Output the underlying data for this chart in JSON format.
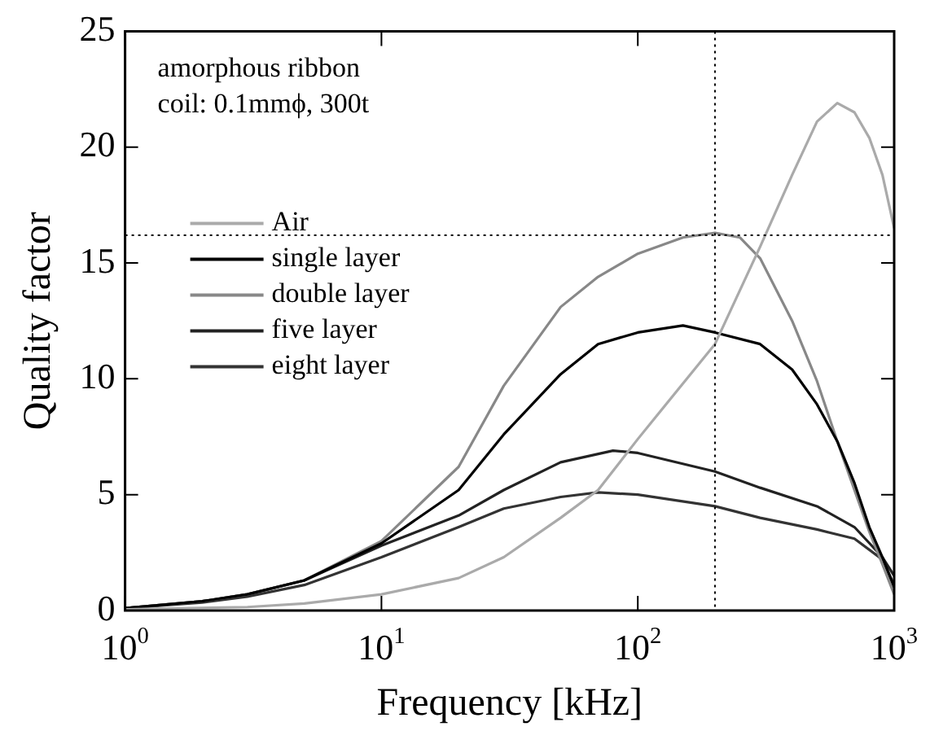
{
  "chart_data": {
    "type": "line",
    "xlabel": "Frequency [kHz]",
    "ylabel": "Quality factor",
    "annotations": [
      "amorphous ribbon",
      "coil: 0.1mmϕ, 300t"
    ],
    "log": "x",
    "xlim": [
      1,
      1000
    ],
    "xticks": [
      {
        "value": 1,
        "label": "10$^{0}$"
      },
      {
        "value": 10,
        "label": "10$^{1}$"
      },
      {
        "value": 100,
        "label": "10$^{2}$"
      },
      {
        "value": 1000,
        "label": "10$^{3}$"
      }
    ],
    "ylim": [
      0,
      25
    ],
    "yticks": [
      0,
      5,
      10,
      15,
      20,
      25
    ],
    "grid": false,
    "legend": "top left",
    "marker": "none",
    "ref_lines": [
      {
        "axis": "x",
        "value": 200,
        "color": "#000000",
        "line_style": "dotted"
      },
      {
        "axis": "y",
        "value": 16.2,
        "color": "#000000",
        "line_style": "dotted"
      }
    ],
    "series": [
      {
        "name": "Air",
        "color": "#aaaaaa",
        "x": [
          1,
          3,
          5,
          10,
          20,
          30,
          50,
          70,
          100,
          200,
          300,
          400,
          500,
          600,
          700,
          800,
          900,
          1000
        ],
        "values": [
          0.05,
          0.15,
          0.3,
          0.7,
          1.4,
          2.3,
          4.0,
          5.2,
          7.4,
          11.5,
          15.7,
          18.8,
          21.1,
          21.9,
          21.5,
          20.4,
          18.8,
          16.5
        ]
      },
      {
        "name": "single layer",
        "color": "#000000",
        "x": [
          1,
          2,
          3,
          5,
          10,
          20,
          30,
          50,
          70,
          100,
          150,
          200,
          300,
          400,
          500,
          600,
          700,
          800,
          900,
          1000
        ],
        "values": [
          0.1,
          0.4,
          0.7,
          1.3,
          2.9,
          5.2,
          7.6,
          10.2,
          11.5,
          12.0,
          12.3,
          12.0,
          11.5,
          10.4,
          8.9,
          7.3,
          5.5,
          3.6,
          2.3,
          1.0
        ]
      },
      {
        "name": "double layer",
        "color": "#888888",
        "x": [
          1,
          2,
          3,
          5,
          10,
          20,
          30,
          50,
          70,
          100,
          150,
          200,
          250,
          300,
          400,
          500,
          600,
          700,
          800,
          900,
          1000
        ],
        "values": [
          0.1,
          0.4,
          0.7,
          1.3,
          3.0,
          6.2,
          9.7,
          13.1,
          14.4,
          15.4,
          16.1,
          16.3,
          16.1,
          15.2,
          12.5,
          9.9,
          7.3,
          5.2,
          3.4,
          2.0,
          0.7
        ]
      },
      {
        "name": "five layer",
        "color": "#222222",
        "x": [
          1,
          2,
          3,
          5,
          10,
          20,
          30,
          50,
          80,
          100,
          200,
          300,
          500,
          700,
          900,
          1000
        ],
        "values": [
          0.1,
          0.4,
          0.7,
          1.3,
          2.8,
          4.1,
          5.2,
          6.4,
          6.9,
          6.8,
          6.0,
          5.3,
          4.5,
          3.6,
          2.3,
          1.5
        ]
      },
      {
        "name": "eight layer",
        "color": "#333333",
        "x": [
          1,
          2,
          3,
          5,
          10,
          20,
          30,
          50,
          70,
          100,
          200,
          300,
          500,
          700,
          900,
          1000
        ],
        "values": [
          0.1,
          0.35,
          0.6,
          1.1,
          2.3,
          3.6,
          4.4,
          4.9,
          5.1,
          5.0,
          4.5,
          4.0,
          3.5,
          3.1,
          2.2,
          1.1
        ]
      }
    ]
  }
}
